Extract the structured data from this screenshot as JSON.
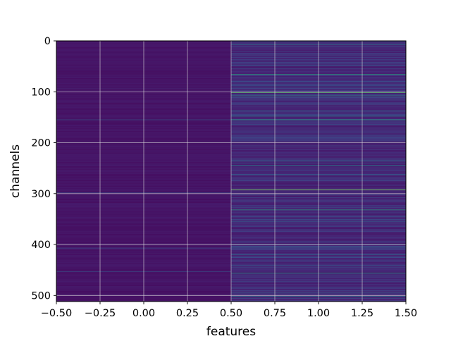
{
  "chart_data": {
    "type": "heatmap",
    "title": "",
    "xlabel": "features",
    "ylabel": "channels",
    "xlim": [
      -0.5,
      1.5
    ],
    "ylim": [
      512,
      0
    ],
    "x_tick_labels": [
      "−0.50",
      "−0.25",
      "0.00",
      "0.25",
      "0.50",
      "0.75",
      "1.00",
      "1.25",
      "1.50"
    ],
    "x_ticks": [
      -0.5,
      -0.25,
      0.0,
      0.25,
      0.5,
      0.75,
      1.0,
      1.25,
      1.5
    ],
    "y_tick_labels": [
      "0",
      "100",
      "200",
      "300",
      "400",
      "500"
    ],
    "y_ticks": [
      0,
      100,
      200,
      300,
      400,
      500
    ],
    "grid": true,
    "colormap": "viridis",
    "columns": [
      {
        "feature_index": 0,
        "base_value": 0.05
      },
      {
        "feature_index": 1,
        "base_value": 0.1
      }
    ],
    "n_channels": 512,
    "highlighted_rows": [
      {
        "column": 0,
        "channel": 155,
        "value": 0.35
      },
      {
        "column": 0,
        "channel": 298,
        "value": 0.3
      },
      {
        "column": 0,
        "channel": 407,
        "value": 0.3
      },
      {
        "column": 0,
        "channel": 453,
        "value": 0.32
      },
      {
        "column": 1,
        "channel": 8,
        "value": 0.45
      },
      {
        "column": 1,
        "channel": 66,
        "value": 0.6
      },
      {
        "column": 1,
        "channel": 102,
        "value": 0.75
      },
      {
        "column": 1,
        "channel": 108,
        "value": 0.55
      },
      {
        "column": 1,
        "channel": 137,
        "value": 0.4
      },
      {
        "column": 1,
        "channel": 148,
        "value": 0.5
      },
      {
        "column": 1,
        "channel": 155,
        "value": 0.62
      },
      {
        "column": 1,
        "channel": 236,
        "value": 0.45
      },
      {
        "column": 1,
        "channel": 245,
        "value": 0.5
      },
      {
        "column": 1,
        "channel": 263,
        "value": 0.42
      },
      {
        "column": 1,
        "channel": 293,
        "value": 0.85
      },
      {
        "column": 1,
        "channel": 332,
        "value": 0.6
      },
      {
        "column": 1,
        "channel": 355,
        "value": 0.35
      },
      {
        "column": 1,
        "channel": 420,
        "value": 0.4
      },
      {
        "column": 1,
        "channel": 456,
        "value": 0.58
      },
      {
        "column": 1,
        "channel": 494,
        "value": 0.42
      },
      {
        "column": 1,
        "channel": 502,
        "value": 0.45
      }
    ]
  }
}
